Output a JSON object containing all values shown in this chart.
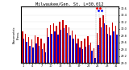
{
  "title": "Milwaukee/Gen. St. L=30.012",
  "subtitle": "Barometric\nPress.",
  "days": [
    1,
    2,
    3,
    4,
    5,
    6,
    7,
    8,
    9,
    10,
    11,
    12,
    13,
    14,
    15,
    16,
    17,
    18,
    19,
    20,
    21,
    22,
    23,
    24,
    25,
    26,
    27,
    28,
    29,
    30,
    31
  ],
  "high": [
    29.92,
    29.85,
    29.75,
    29.68,
    29.8,
    29.75,
    29.72,
    29.58,
    30.02,
    30.1,
    30.15,
    30.08,
    30.2,
    30.25,
    30.12,
    30.05,
    29.95,
    29.82,
    29.7,
    29.65,
    29.72,
    29.78,
    29.6,
    29.42,
    29.88,
    30.32,
    30.4,
    30.12,
    30.05,
    30.18,
    30.08
  ],
  "low": [
    29.7,
    29.62,
    29.5,
    29.44,
    29.58,
    29.5,
    29.4,
    29.32,
    29.76,
    29.85,
    29.92,
    29.82,
    29.96,
    30.02,
    29.88,
    29.8,
    29.7,
    29.56,
    29.44,
    29.4,
    29.48,
    29.52,
    29.36,
    29.15,
    29.52,
    30.05,
    30.15,
    29.86,
    29.8,
    29.92,
    29.82
  ],
  "dot_high": [
    null,
    null,
    null,
    null,
    null,
    null,
    null,
    null,
    null,
    null,
    null,
    null,
    null,
    null,
    null,
    null,
    null,
    null,
    null,
    null,
    null,
    null,
    null,
    null,
    30.52,
    30.58,
    null,
    null,
    null,
    null,
    null
  ],
  "dot_low": [
    null,
    null,
    null,
    null,
    null,
    null,
    null,
    null,
    null,
    null,
    null,
    null,
    null,
    null,
    null,
    null,
    null,
    null,
    null,
    null,
    null,
    null,
    null,
    null,
    30.22,
    30.28,
    null,
    null,
    null,
    null,
    null
  ],
  "ylim": [
    29.0,
    30.65
  ],
  "yticks": [
    29.0,
    29.2,
    29.4,
    29.6,
    29.8,
    30.0,
    30.2,
    30.4,
    30.6
  ],
  "ytick_labels": [
    "29.0",
    "29.2",
    "29.4",
    "29.6",
    "29.8",
    "30.0",
    "30.2",
    "30.4",
    "30.6"
  ],
  "bar_width": 0.4,
  "color_high": "#cc0000",
  "color_low": "#0000cc",
  "color_dot_high": "#ff0000",
  "color_dot_low": "#0000ff",
  "dashed_lines": [
    24.5,
    25.5,
    26.5,
    27.5
  ],
  "background": "#ffffff",
  "title_fontsize": 3.8,
  "tick_fontsize": 2.5,
  "ylabel_fontsize": 2.8
}
